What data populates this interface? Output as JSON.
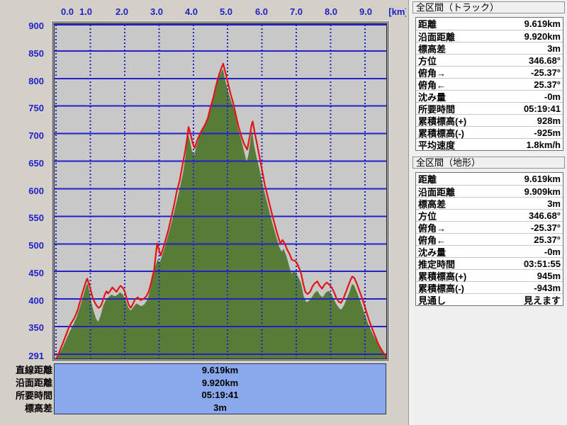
{
  "chart": {
    "x_axis": {
      "labels": [
        "0.0",
        "1.0",
        "2.0",
        "3.0",
        "4.0",
        "5.0",
        "6.0",
        "7.0",
        "8.0",
        "9.0"
      ],
      "unit": "[km]"
    },
    "y_axis": {
      "labels": [
        "900",
        "850",
        "800",
        "750",
        "700",
        "650",
        "600",
        "550",
        "500",
        "450",
        "400",
        "350"
      ],
      "floor_label": "291"
    },
    "summary": {
      "labels": [
        "直線距離",
        "沿面距離",
        "所要時間",
        "標高差"
      ],
      "values": [
        "9.619km",
        "9.920km",
        "05:19:41",
        "3m"
      ]
    }
  },
  "chart_data": {
    "type": "area",
    "title": "",
    "xlabel": "[km]",
    "ylabel": "",
    "xlim": [
      0,
      9.619
    ],
    "ylim": [
      291,
      900
    ],
    "grid": true,
    "x_gridline_km": [
      0,
      1,
      2,
      3,
      4,
      5,
      6,
      7,
      8,
      9
    ],
    "y_gridline_step": 50,
    "colors": {
      "plot_bg": "#c8c8c8",
      "grid": "#2121c8",
      "track_line": "#e41414",
      "terrain_fill": "#567c38"
    },
    "series": [
      {
        "name": "track_elevation_red_line",
        "color": "#e41414",
        "points": [
          [
            0.0,
            291
          ],
          [
            0.06,
            298
          ],
          [
            0.12,
            308
          ],
          [
            0.2,
            320
          ],
          [
            0.28,
            333
          ],
          [
            0.36,
            346
          ],
          [
            0.44,
            356
          ],
          [
            0.52,
            364
          ],
          [
            0.58,
            372
          ],
          [
            0.64,
            382
          ],
          [
            0.7,
            395
          ],
          [
            0.76,
            409
          ],
          [
            0.82,
            421
          ],
          [
            0.88,
            433
          ],
          [
            0.91,
            437
          ],
          [
            0.95,
            429
          ],
          [
            1.0,
            419
          ],
          [
            1.06,
            404
          ],
          [
            1.12,
            395
          ],
          [
            1.18,
            388
          ],
          [
            1.24,
            384
          ],
          [
            1.3,
            387
          ],
          [
            1.36,
            396
          ],
          [
            1.42,
            408
          ],
          [
            1.47,
            414
          ],
          [
            1.52,
            410
          ],
          [
            1.58,
            415
          ],
          [
            1.64,
            421
          ],
          [
            1.7,
            417
          ],
          [
            1.76,
            413
          ],
          [
            1.82,
            419
          ],
          [
            1.88,
            424
          ],
          [
            1.94,
            421
          ],
          [
            2.0,
            414
          ],
          [
            2.06,
            401
          ],
          [
            2.12,
            389
          ],
          [
            2.18,
            384
          ],
          [
            2.24,
            391
          ],
          [
            2.3,
            399
          ],
          [
            2.38,
            403
          ],
          [
            2.46,
            398
          ],
          [
            2.54,
            400
          ],
          [
            2.62,
            404
          ],
          [
            2.7,
            413
          ],
          [
            2.78,
            432
          ],
          [
            2.86,
            455
          ],
          [
            2.92,
            488
          ],
          [
            2.95,
            501
          ],
          [
            3.0,
            489
          ],
          [
            3.05,
            479
          ],
          [
            3.12,
            492
          ],
          [
            3.2,
            509
          ],
          [
            3.28,
            527
          ],
          [
            3.36,
            549
          ],
          [
            3.44,
            571
          ],
          [
            3.52,
            596
          ],
          [
            3.6,
            614
          ],
          [
            3.68,
            642
          ],
          [
            3.76,
            668
          ],
          [
            3.82,
            692
          ],
          [
            3.86,
            712
          ],
          [
            3.92,
            699
          ],
          [
            3.98,
            683
          ],
          [
            4.04,
            674
          ],
          [
            4.12,
            689
          ],
          [
            4.22,
            703
          ],
          [
            4.32,
            714
          ],
          [
            4.42,
            727
          ],
          [
            4.5,
            748
          ],
          [
            4.58,
            765
          ],
          [
            4.66,
            787
          ],
          [
            4.74,
            805
          ],
          [
            4.8,
            816
          ],
          [
            4.87,
            827
          ],
          [
            4.93,
            812
          ],
          [
            5.0,
            794
          ],
          [
            5.08,
            773
          ],
          [
            5.16,
            756
          ],
          [
            5.24,
            733
          ],
          [
            5.32,
            712
          ],
          [
            5.4,
            695
          ],
          [
            5.48,
            681
          ],
          [
            5.57,
            671
          ],
          [
            5.64,
            694
          ],
          [
            5.7,
            717
          ],
          [
            5.73,
            722
          ],
          [
            5.79,
            701
          ],
          [
            5.85,
            683
          ],
          [
            5.92,
            660
          ],
          [
            6.0,
            634
          ],
          [
            6.08,
            607
          ],
          [
            6.14,
            592
          ],
          [
            6.22,
            572
          ],
          [
            6.3,
            552
          ],
          [
            6.38,
            533
          ],
          [
            6.46,
            515
          ],
          [
            6.53,
            501
          ],
          [
            6.6,
            507
          ],
          [
            6.66,
            501
          ],
          [
            6.73,
            490
          ],
          [
            6.8,
            482
          ],
          [
            6.87,
            471
          ],
          [
            6.94,
            470
          ],
          [
            7.0,
            467
          ],
          [
            7.07,
            458
          ],
          [
            7.14,
            446
          ],
          [
            7.2,
            428
          ],
          [
            7.26,
            413
          ],
          [
            7.33,
            409
          ],
          [
            7.4,
            413
          ],
          [
            7.47,
            423
          ],
          [
            7.54,
            429
          ],
          [
            7.61,
            432
          ],
          [
            7.68,
            424
          ],
          [
            7.75,
            419
          ],
          [
            7.82,
            426
          ],
          [
            7.89,
            430
          ],
          [
            7.96,
            426
          ],
          [
            8.03,
            421
          ],
          [
            8.1,
            412
          ],
          [
            8.17,
            401
          ],
          [
            8.24,
            395
          ],
          [
            8.3,
            393
          ],
          [
            8.37,
            401
          ],
          [
            8.44,
            412
          ],
          [
            8.51,
            424
          ],
          [
            8.58,
            435
          ],
          [
            8.63,
            441
          ],
          [
            8.69,
            438
          ],
          [
            8.76,
            428
          ],
          [
            8.83,
            416
          ],
          [
            8.9,
            404
          ],
          [
            8.97,
            391
          ],
          [
            9.04,
            377
          ],
          [
            9.11,
            363
          ],
          [
            9.18,
            351
          ],
          [
            9.25,
            340
          ],
          [
            9.32,
            329
          ],
          [
            9.39,
            318
          ],
          [
            9.46,
            310
          ],
          [
            9.53,
            303
          ],
          [
            9.59,
            297
          ],
          [
            9.62,
            293
          ]
        ]
      },
      {
        "name": "terrain_profile_green_area",
        "color": "#567c38",
        "points": [
          [
            0.0,
            291
          ],
          [
            0.1,
            301
          ],
          [
            0.2,
            313
          ],
          [
            0.3,
            327
          ],
          [
            0.4,
            341
          ],
          [
            0.5,
            353
          ],
          [
            0.6,
            367
          ],
          [
            0.7,
            386
          ],
          [
            0.8,
            407
          ],
          [
            0.88,
            424
          ],
          [
            0.92,
            429
          ],
          [
            0.98,
            411
          ],
          [
            1.04,
            391
          ],
          [
            1.1,
            377
          ],
          [
            1.17,
            364
          ],
          [
            1.23,
            359
          ],
          [
            1.3,
            370
          ],
          [
            1.38,
            389
          ],
          [
            1.46,
            399
          ],
          [
            1.54,
            404
          ],
          [
            1.62,
            408
          ],
          [
            1.7,
            405
          ],
          [
            1.78,
            407
          ],
          [
            1.86,
            412
          ],
          [
            1.94,
            409
          ],
          [
            2.02,
            399
          ],
          [
            2.1,
            385
          ],
          [
            2.18,
            379
          ],
          [
            2.26,
            386
          ],
          [
            2.34,
            392
          ],
          [
            2.42,
            389
          ],
          [
            2.5,
            387
          ],
          [
            2.58,
            391
          ],
          [
            2.66,
            399
          ],
          [
            2.74,
            415
          ],
          [
            2.82,
            438
          ],
          [
            2.9,
            461
          ],
          [
            2.96,
            472
          ],
          [
            3.02,
            466
          ],
          [
            3.1,
            480
          ],
          [
            3.2,
            501
          ],
          [
            3.3,
            523
          ],
          [
            3.4,
            547
          ],
          [
            3.5,
            573
          ],
          [
            3.6,
            600
          ],
          [
            3.7,
            628
          ],
          [
            3.78,
            662
          ],
          [
            3.84,
            701
          ],
          [
            3.9,
            687
          ],
          [
            3.96,
            669
          ],
          [
            4.02,
            661
          ],
          [
            4.1,
            679
          ],
          [
            4.2,
            699
          ],
          [
            4.3,
            713
          ],
          [
            4.4,
            729
          ],
          [
            4.5,
            750
          ],
          [
            4.6,
            771
          ],
          [
            4.7,
            794
          ],
          [
            4.8,
            810
          ],
          [
            4.86,
            818
          ],
          [
            4.92,
            799
          ],
          [
            5.0,
            779
          ],
          [
            5.1,
            759
          ],
          [
            5.2,
            740
          ],
          [
            5.3,
            709
          ],
          [
            5.4,
            688
          ],
          [
            5.48,
            667
          ],
          [
            5.55,
            649
          ],
          [
            5.61,
            663
          ],
          [
            5.67,
            692
          ],
          [
            5.71,
            706
          ],
          [
            5.77,
            679
          ],
          [
            5.84,
            658
          ],
          [
            5.92,
            637
          ],
          [
            6.0,
            612
          ],
          [
            6.1,
            587
          ],
          [
            6.2,
            562
          ],
          [
            6.3,
            538
          ],
          [
            6.4,
            516
          ],
          [
            6.5,
            495
          ],
          [
            6.57,
            486
          ],
          [
            6.63,
            491
          ],
          [
            6.71,
            478
          ],
          [
            6.79,
            460
          ],
          [
            6.86,
            446
          ],
          [
            6.93,
            451
          ],
          [
            7.0,
            446
          ],
          [
            7.07,
            438
          ],
          [
            7.14,
            428
          ],
          [
            7.21,
            406
          ],
          [
            7.29,
            394
          ],
          [
            7.37,
            397
          ],
          [
            7.45,
            403
          ],
          [
            7.53,
            411
          ],
          [
            7.61,
            415
          ],
          [
            7.69,
            407
          ],
          [
            7.77,
            403
          ],
          [
            7.85,
            411
          ],
          [
            7.93,
            415
          ],
          [
            8.01,
            410
          ],
          [
            8.09,
            400
          ],
          [
            8.17,
            390
          ],
          [
            8.25,
            383
          ],
          [
            8.31,
            381
          ],
          [
            8.39,
            389
          ],
          [
            8.47,
            401
          ],
          [
            8.55,
            413
          ],
          [
            8.62,
            427
          ],
          [
            8.68,
            425
          ],
          [
            8.76,
            413
          ],
          [
            8.84,
            400
          ],
          [
            8.92,
            386
          ],
          [
            9.0,
            371
          ],
          [
            9.08,
            357
          ],
          [
            9.16,
            345
          ],
          [
            9.24,
            335
          ],
          [
            9.32,
            325
          ],
          [
            9.4,
            317
          ],
          [
            9.48,
            309
          ],
          [
            9.56,
            302
          ],
          [
            9.62,
            297
          ]
        ]
      }
    ]
  },
  "panels": [
    {
      "title": "全区間（トラック）",
      "rows": [
        {
          "label": "距離",
          "value": "9.619km"
        },
        {
          "label": "沿面距離",
          "value": "9.920km"
        },
        {
          "label": "標高差",
          "value": "3m"
        },
        {
          "label": "方位",
          "value": "346.68°"
        },
        {
          "label": "俯角→",
          "value": "-25.37°"
        },
        {
          "label": "俯角←",
          "value": "25.37°"
        },
        {
          "label": "沈み量",
          "value": "-0m"
        },
        {
          "label": "所要時間",
          "value": "05:19:41"
        },
        {
          "label": "累積標高(+)",
          "value": "928m"
        },
        {
          "label": "累積標高(-)",
          "value": "-925m"
        },
        {
          "label": "平均速度",
          "value": "1.8km/h"
        }
      ]
    },
    {
      "title": "全区間（地形）",
      "rows": [
        {
          "label": "距離",
          "value": "9.619km"
        },
        {
          "label": "沿面距離",
          "value": "9.909km"
        },
        {
          "label": "標高差",
          "value": "3m"
        },
        {
          "label": "方位",
          "value": "346.68°"
        },
        {
          "label": "俯角→",
          "value": "-25.37°"
        },
        {
          "label": "俯角←",
          "value": "25.37°"
        },
        {
          "label": "沈み量",
          "value": "-0m"
        },
        {
          "label": "推定時間",
          "value": "03:51:55"
        },
        {
          "label": "累積標高(+)",
          "value": "945m"
        },
        {
          "label": "累積標高(-)",
          "value": "-943m"
        },
        {
          "label": "見通し",
          "value": "見えます"
        }
      ]
    }
  ]
}
